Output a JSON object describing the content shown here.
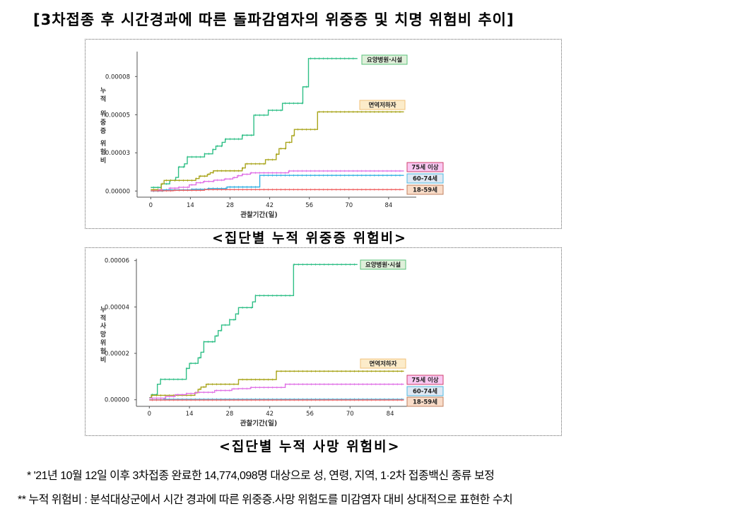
{
  "title": "[3차접종 후 시간경과에 따른 돌파감염자의 위중증 및 치명 위험비 추이]",
  "chart_data": [
    {
      "type": "line",
      "step": true,
      "caption": "<집단별 누적 위중증 위험비>",
      "ylabel": [
        "누적",
        "위중증",
        "위험비"
      ],
      "xlabel": "관찰기간(일)",
      "xticks": [
        0,
        14,
        28,
        42,
        56,
        70,
        84
      ],
      "yticks": [
        {
          "value": 0,
          "label": "0.00000"
        },
        {
          "value": 2.67e-05,
          "label": "0.00003"
        },
        {
          "value": 5.33e-05,
          "label": "0.00005"
        },
        {
          "value": 8e-05,
          "label": "0.00008"
        }
      ],
      "xlim": [
        0,
        90
      ],
      "grid": false,
      "legend": "right, inline labels",
      "series": [
        {
          "name": "요양병원·시설",
          "color": "#2fbf86",
          "label_bg": "#dff0da",
          "label_border": "#58c07a",
          "x": [
            0,
            3.7,
            6.7,
            8.8,
            9.8,
            11.9,
            12.9,
            19,
            21.9,
            23,
            25.2,
            26.3,
            32.3,
            36.4,
            41.5,
            46.5,
            53.7,
            55.7,
            73
          ],
          "y": [
            2.5e-06,
            5e-06,
            7.4e-06,
            9.5e-06,
            1.68e-05,
            1.9e-05,
            2.38e-05,
            2.6e-05,
            2.9e-05,
            3.14e-05,
            3.4e-05,
            3.63e-05,
            3.9e-05,
            5.3e-05,
            5.64e-05,
            6.13e-05,
            7.28e-05,
            9.26e-05,
            9.26e-05
          ]
        },
        {
          "name": "면역저하자",
          "color": "#a9a51c",
          "label_bg": "#fcecca",
          "label_border": "#f0c27a",
          "x": [
            0,
            3.7,
            4.7,
            15.9,
            17.1,
            20,
            21,
            22.1,
            32.3,
            33.4,
            40.5,
            44.3,
            45.3,
            47.7,
            49.8,
            50.7,
            58.9,
            89.4
          ],
          "y": [
            1e-06,
            5e-06,
            7.4e-06,
            8.7e-06,
            1.04e-05,
            1.17e-05,
            1.28e-05,
            1.41e-05,
            1.61e-05,
            1.9e-05,
            2.19e-05,
            2.57e-05,
            2.96e-05,
            3.4e-05,
            3.87e-05,
            4.3e-05,
            5.53e-05,
            5.53e-05
          ]
        },
        {
          "name": "75세 이상",
          "color": "#e071e6",
          "label_bg": "#f9c8f2",
          "label_border": "#d0406e",
          "x": [
            0,
            2.7,
            6.5,
            9.8,
            13.6,
            16,
            18.6,
            22.3,
            26,
            29,
            30.6,
            32.3,
            35.2,
            48.7,
            89.4
          ],
          "y": [
            0,
            8e-07,
            2e-06,
            2.6e-06,
            4.3e-06,
            5.8e-06,
            6.7e-06,
            7.6e-06,
            8.4e-06,
            9.4e-06,
            1.07e-05,
            1.17e-05,
            1.27e-05,
            1.4e-05,
            1.4e-05
          ]
        },
        {
          "name": "60-74세",
          "color": "#32b0e2",
          "label_bg": "#dfe8f3",
          "label_border": "#4fb8e0",
          "x": [
            0,
            4.4,
            14.4,
            20.2,
            26.9,
            38.5,
            89.4
          ],
          "y": [
            0,
            8e-07,
            1.2e-06,
            1.8e-06,
            2.8e-06,
            1.09e-05,
            1.09e-05
          ]
        },
        {
          "name": "18-59세",
          "color": "#f06262",
          "label_bg": "#f9dcc8",
          "label_border": "#c08060",
          "x": [
            0,
            8,
            19,
            89.4
          ],
          "y": [
            2e-07,
            5e-07,
            1e-06,
            1e-06
          ]
        }
      ]
    },
    {
      "type": "line",
      "step": true,
      "caption": "<집단별 누적 사망 위험비>",
      "ylabel": [
        "누적",
        "사망",
        "위험비"
      ],
      "xlabel": "관찰기간(일)",
      "xticks": [
        0,
        14,
        28,
        42,
        56,
        70,
        84
      ],
      "yticks": [
        {
          "value": 0,
          "label": "0.00000"
        },
        {
          "value": 2e-05,
          "label": "0.00002"
        },
        {
          "value": 4e-05,
          "label": "0.00004"
        },
        {
          "value": 6e-05,
          "label": "0.00006"
        }
      ],
      "xlim": [
        0,
        90
      ],
      "grid": false,
      "legend": "right, inline labels",
      "series": [
        {
          "name": "요양병원·시설",
          "color": "#2fbf86",
          "label_bg": "#dff0da",
          "label_border": "#58c07a",
          "x": [
            0,
            0.7,
            2.8,
            3.9,
            12.9,
            14,
            17,
            18,
            19,
            22.9,
            24,
            25.2,
            28,
            30.1,
            31.1,
            36,
            37,
            50.3,
            72.6
          ],
          "y": [
            9e-07,
            2.2e-06,
            6.7e-06,
            8.8e-06,
            1.35e-05,
            1.57e-05,
            1.81e-05,
            2.05e-05,
            2.5e-05,
            2.75e-05,
            2.98e-05,
            3.22e-05,
            3.45e-05,
            3.7e-05,
            3.97e-05,
            4.22e-05,
            4.49e-05,
            5.83e-05,
            5.83e-05
          ]
        },
        {
          "name": "면역저하자",
          "color": "#a9a51c",
          "label_bg": "#fcecca",
          "label_border": "#f0c27a",
          "x": [
            0,
            0.7,
            15.9,
            17,
            18,
            19.8,
            31.1,
            44.3,
            88.8
          ],
          "y": [
            8e-07,
            1.9e-06,
            3e-06,
            4.5e-06,
            5.5e-06,
            6.7e-06,
            8.7e-06,
            1.23e-05,
            1.23e-05
          ]
        },
        {
          "name": "75세 이상",
          "color": "#e071e6",
          "label_bg": "#f9c8f2",
          "label_border": "#d0406e",
          "x": [
            0,
            5.7,
            9,
            12.9,
            16.2,
            22.8,
            28.8,
            31.1,
            35.3,
            47.4,
            88.8
          ],
          "y": [
            7e-07,
            1.4e-06,
            2.2e-06,
            2.7e-06,
            3.2e-06,
            4e-06,
            4.7e-06,
            4.8e-06,
            5.3e-06,
            6.7e-06,
            6.7e-06
          ]
        },
        {
          "name": "60-74세",
          "color": "#32b0e2",
          "label_bg": "#dfe8f3",
          "label_border": "#4fb8e0",
          "x": [
            0,
            5,
            88.8
          ],
          "y": [
            0,
            2e-07,
            2e-07
          ]
        },
        {
          "name": "18-59세",
          "color": "#f06262",
          "label_bg": "#f9dcc8",
          "label_border": "#c08060",
          "x": [
            0,
            88.8
          ],
          "y": [
            -1e-07,
            -1e-07
          ]
        }
      ]
    }
  ],
  "notes": [
    "* '21년 10월 12일 이후 3차접종 완료한 14,774,098명 대상으로 성, 연령, 지역, 1·2차 접종백신 종류 보정",
    "** 누적 위험비 : 분석대상군에서 시간 경과에 따른 위중증.사망 위험도를 미감염자 대비 상대적으로 표현한 수치"
  ]
}
